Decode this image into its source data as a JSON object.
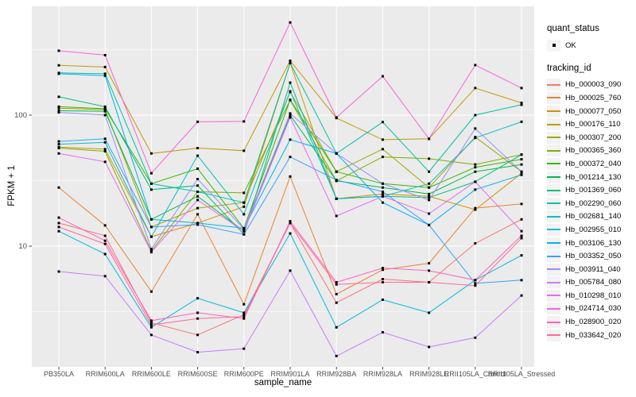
{
  "figure": {
    "panel_background": "#EBEBEB",
    "grid_color": "#FFFFFF",
    "axis_text_color": "#4D4D4D",
    "tick_color": "#333333",
    "point_color": "#000000"
  },
  "chart_data": {
    "type": "line",
    "title": "",
    "xlabel": "sample_name",
    "ylabel": "FPKM + 1",
    "y_scale": "log10",
    "ylim": [
      1.2,
      680
    ],
    "grid": true,
    "legend_position": "right",
    "yticks": [
      {
        "label": "10",
        "value": 10
      },
      {
        "label": "100",
        "value": 100
      }
    ],
    "minor_grid_values": [
      3.162,
      31.62,
      316.2
    ],
    "categories": [
      "PB350LA",
      "RRIM600LA",
      "RRIM600LE",
      "RRIM600SE",
      "RRIM600PE",
      "RRIM901LA",
      "RRIM928BA",
      "RRIM928LA",
      "RRIM928LE",
      "RRII105LA_Control",
      "RRII105LA_Stressed"
    ],
    "series": [
      {
        "name": "Hb_000003_090",
        "color": "#F8766D",
        "values": [
          15,
          12,
          2.6,
          2.1,
          3.0,
          15,
          3.7,
          5.6,
          5.3,
          10.5,
          16
        ]
      },
      {
        "name": "Hb_000025_760",
        "color": "#EA8331",
        "values": [
          28,
          14.4,
          4.5,
          17.5,
          3.6,
          34,
          4.3,
          6.6,
          7.4,
          19.5,
          21
        ]
      },
      {
        "name": "Hb_000077_050",
        "color": "#D89000",
        "values": [
          57,
          55,
          11.8,
          15,
          20,
          250,
          23,
          25,
          24,
          19,
          36
        ]
      },
      {
        "name": "Hb_000176_110",
        "color": "#C09B00",
        "values": [
          240,
          233,
          51,
          56,
          53.5,
          260,
          95,
          65,
          66,
          161,
          124
        ]
      },
      {
        "name": "Hb_000307_200",
        "color": "#A3A500",
        "values": [
          113,
          110,
          14,
          19.5,
          21.5,
          150,
          37,
          55,
          28,
          68,
          37
        ]
      },
      {
        "name": "Hb_000365_360",
        "color": "#7CAE00",
        "values": [
          56,
          53,
          9.2,
          26,
          25.5,
          130,
          31.5,
          48,
          46.5,
          42,
          50
        ]
      },
      {
        "name": "Hb_000372_040",
        "color": "#39B600",
        "values": [
          116,
          112,
          30,
          39,
          13.7,
          131,
          37,
          30,
          28,
          40,
          46
        ]
      },
      {
        "name": "Hb_001214_130",
        "color": "#00BB4E",
        "values": [
          108,
          107,
          16,
          24,
          13,
          100,
          31.5,
          28,
          25,
          37,
          42
        ]
      },
      {
        "name": "Hb_001369_060",
        "color": "#00BF7D",
        "values": [
          138,
          116,
          27,
          29,
          12.3,
          177,
          23,
          24,
          23.5,
          31,
          50
        ]
      },
      {
        "name": "Hb_002290_060",
        "color": "#00C1A3",
        "values": [
          210,
          207,
          30,
          26,
          21.5,
          250,
          51,
          88.5,
          37,
          100,
          120
        ]
      },
      {
        "name": "Hb_002681_140",
        "color": "#00C0C4",
        "values": [
          60,
          62,
          11.8,
          49,
          17.5,
          152,
          23,
          24,
          30,
          67,
          89
        ]
      },
      {
        "name": "Hb_002955_010",
        "color": "#00BAE0",
        "values": [
          13,
          8.7,
          2.4,
          4.0,
          3.1,
          12.5,
          2.4,
          3.9,
          3.1,
          5.5,
          8.5
        ]
      },
      {
        "name": "Hb_003106_130",
        "color": "#00B0F6",
        "values": [
          207,
          200,
          16,
          15,
          13.7,
          65,
          51,
          21.5,
          14.5,
          27,
          35
        ]
      },
      {
        "name": "Hb_003352_050",
        "color": "#35A2FF",
        "values": [
          63,
          66,
          14,
          14.6,
          12.3,
          48,
          32,
          26,
          14.5,
          5.2,
          5.5
        ]
      },
      {
        "name": "Hb_003911_040",
        "color": "#9590FF",
        "values": [
          105,
          100,
          9.5,
          32.5,
          13.5,
          103,
          51,
          30,
          22.5,
          79,
          37
        ]
      },
      {
        "name": "Hb_005784_080",
        "color": "#C77CFF",
        "values": [
          6.4,
          5.9,
          2.1,
          1.55,
          1.65,
          6.5,
          1.45,
          2.2,
          1.7,
          2.0,
          4.2
        ]
      },
      {
        "name": "Hb_010298_010",
        "color": "#E76BF3",
        "values": [
          51,
          44,
          9.0,
          22.5,
          13,
          96,
          17,
          24,
          17.7,
          31,
          13
        ]
      },
      {
        "name": "Hb_024714_030",
        "color": "#FA62DB",
        "values": [
          310,
          287,
          36,
          89,
          89.5,
          510,
          96,
          198,
          66,
          241,
          161
        ]
      },
      {
        "name": "Hb_028900_020",
        "color": "#FF62BC",
        "values": [
          16.5,
          11,
          2.7,
          3.1,
          2.8,
          15.5,
          5.3,
          6.8,
          6.5,
          5.5,
          12
        ]
      },
      {
        "name": "Hb_033642_020",
        "color": "#FF6A98",
        "values": [
          14,
          10.4,
          2.5,
          2.8,
          2.9,
          15,
          5.1,
          5.3,
          5.3,
          5.0,
          11.5
        ]
      }
    ],
    "legend": {
      "quant_title": "quant_status",
      "quant_items": [
        {
          "label": "OK",
          "icon": "black-point"
        }
      ],
      "series_title": "tracking_id"
    }
  }
}
